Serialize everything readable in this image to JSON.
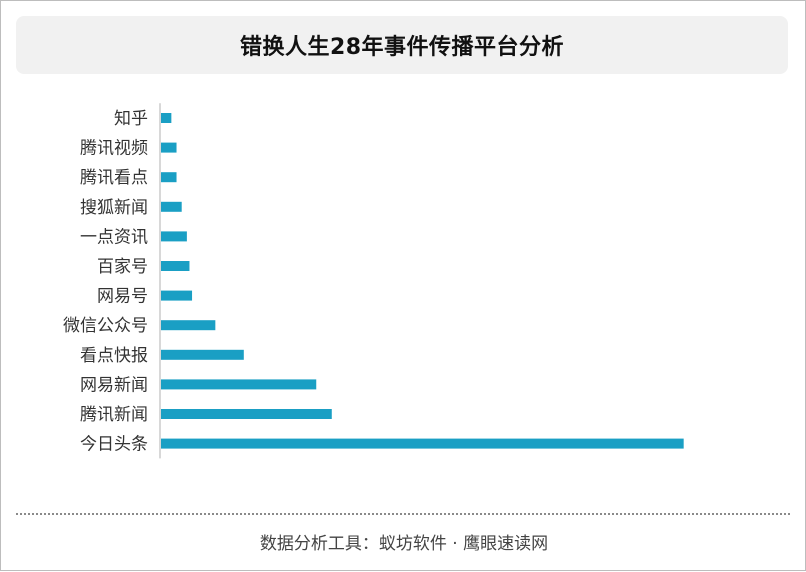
{
  "colors": {
    "bar": "#1a9fc4",
    "axis": "#b0b0b0",
    "title_bg": "#f1f1f1"
  },
  "chart_data": {
    "type": "bar",
    "orientation": "horizontal",
    "title": "错换人生28年事件传播平台分析",
    "categories": [
      "知乎",
      "腾讯视频",
      "腾讯看点",
      "搜狐新闻",
      "一点资讯",
      "百家号",
      "网易号",
      "微信公众号",
      "看点快报",
      "网易新闻",
      "腾讯新闻",
      "今日头条"
    ],
    "values": [
      2,
      3,
      3,
      4,
      5,
      5.5,
      6,
      10.5,
      16,
      30,
      33,
      101
    ],
    "xlim": [
      0,
      120
    ],
    "grid": false,
    "legend": "none"
  },
  "footer": {
    "source": "数据分析工具：蚁坊软件 · 鹰眼速读网"
  }
}
